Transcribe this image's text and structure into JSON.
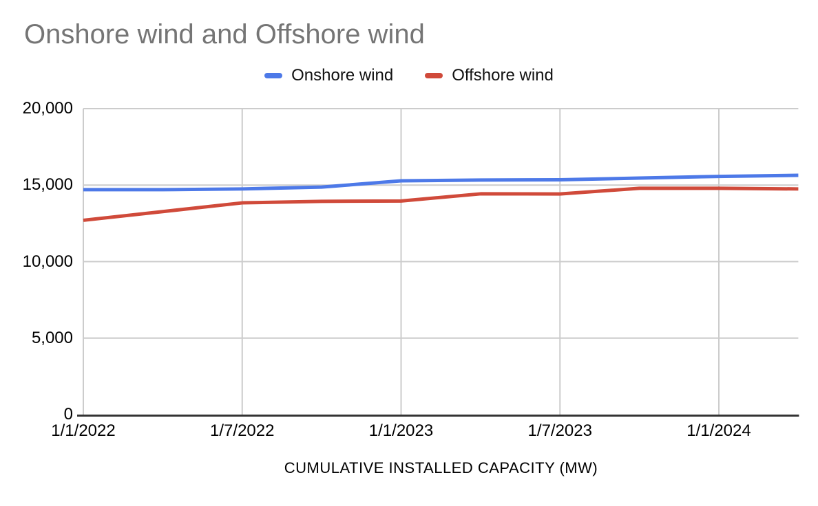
{
  "chart_data": {
    "type": "line",
    "title": "Onshore wind and Offshore wind",
    "xlabel": "CUMULATIVE INSTALLED CAPACITY (MW)",
    "ylabel": "",
    "x": [
      "1/1/2022",
      "1/4/2022",
      "1/7/2022",
      "1/10/2022",
      "1/1/2023",
      "1/4/2023",
      "1/7/2023",
      "1/10/2023",
      "1/1/2024",
      "1/4/2024"
    ],
    "x_tick_labels": [
      "1/1/2022",
      "1/7/2022",
      "1/1/2023",
      "1/7/2023",
      "1/1/2024"
    ],
    "y_ticks": [
      0,
      5000,
      10000,
      15000,
      20000
    ],
    "y_tick_labels": [
      "0",
      "5,000",
      "10,000",
      "15,000",
      "20,000"
    ],
    "ylim": [
      0,
      20000
    ],
    "grid": true,
    "legend_position": "top",
    "series": [
      {
        "name": "Onshore wind",
        "color": "#4d79e8",
        "values": [
          14700,
          14700,
          14750,
          14870,
          15280,
          15330,
          15350,
          15460,
          15570,
          15640
        ]
      },
      {
        "name": "Offshore wind",
        "color": "#d04a3a",
        "values": [
          12700,
          13270,
          13840,
          13940,
          13960,
          14430,
          14420,
          14790,
          14790,
          14750
        ]
      }
    ]
  },
  "colors": {
    "title_text": "#757575",
    "axis_text": "#000000",
    "legend_text": "#111111",
    "gridline": "#cccccc",
    "axis_line": "#333333",
    "background": "#ffffff"
  }
}
